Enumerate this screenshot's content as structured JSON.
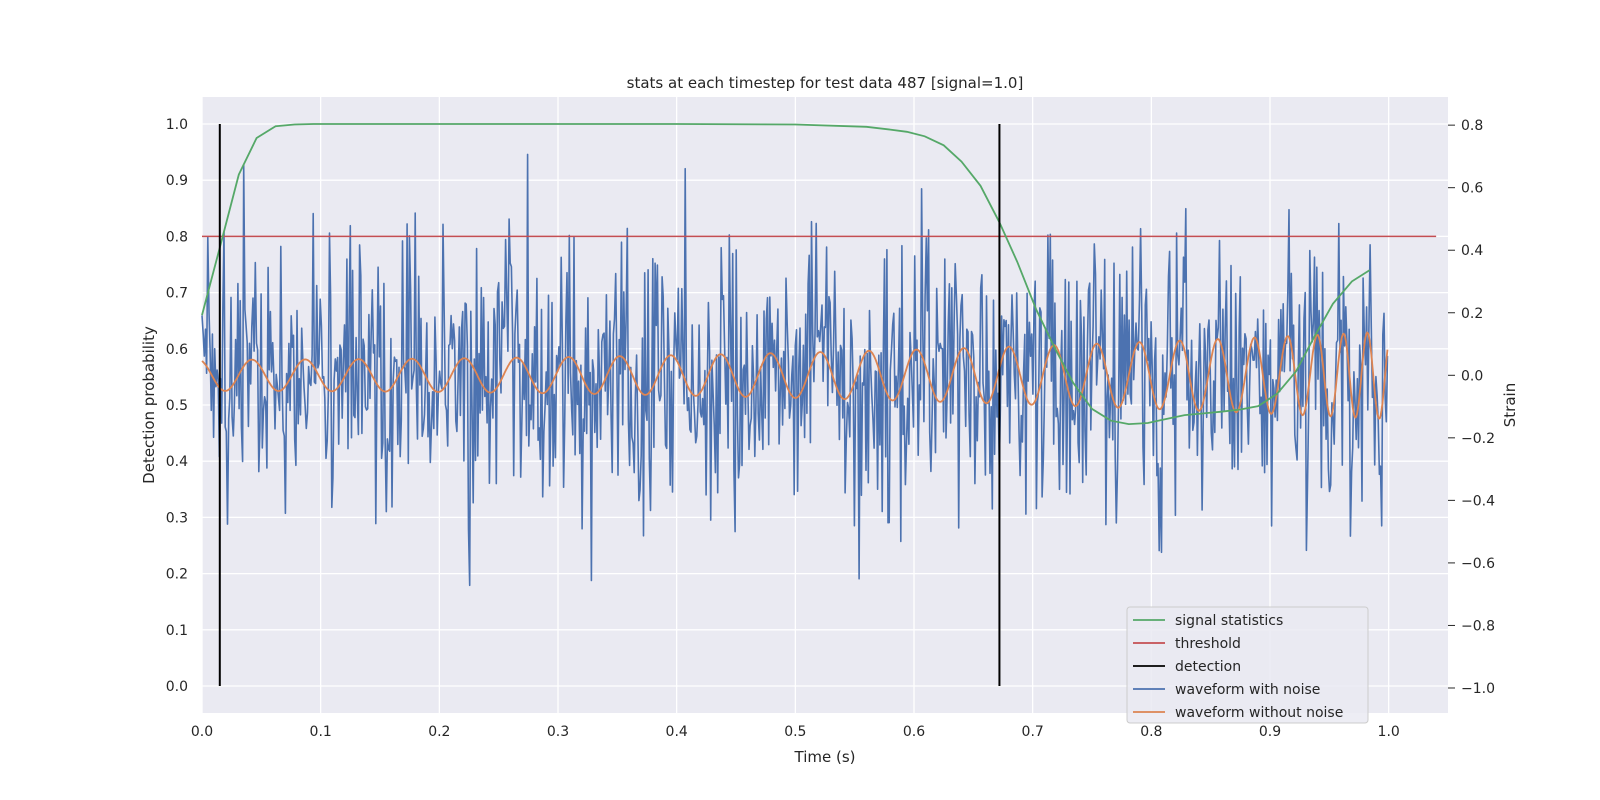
{
  "chart_data": {
    "type": "line",
    "title": "stats at each timestep for test data 487 [signal=1.0]",
    "xlabel": "Time (s)",
    "ylabel": "Detection probability",
    "y2label": "Strain",
    "xlim": [
      0.0,
      1.05
    ],
    "ylim": [
      -0.048,
      1.048
    ],
    "y2lim": [
      -1.08,
      0.89
    ],
    "xticks": [
      "0.0",
      "0.1",
      "0.2",
      "0.3",
      "0.4",
      "0.5",
      "0.6",
      "0.7",
      "0.8",
      "0.9",
      "1.0"
    ],
    "yticks": [
      "0.0",
      "0.1",
      "0.2",
      "0.3",
      "0.4",
      "0.5",
      "0.6",
      "0.7",
      "0.8",
      "0.9",
      "1.0"
    ],
    "y2ticks": [
      "−1.0",
      "−0.8",
      "−0.6",
      "−0.4",
      "−0.2",
      "0.0",
      "0.2",
      "0.4",
      "0.6",
      "0.8"
    ],
    "grid": true,
    "legend_position": "lower-right",
    "series": [
      {
        "name": "signal statistics",
        "axis": "left",
        "color": "#55a868",
        "x": [
          0.0,
          0.015,
          0.031,
          0.046,
          0.062,
          0.078,
          0.094,
          0.2,
          0.3,
          0.4,
          0.5,
          0.56,
          0.58,
          0.594,
          0.609,
          0.625,
          0.64,
          0.656,
          0.672,
          0.687,
          0.703,
          0.719,
          0.734,
          0.75,
          0.766,
          0.781,
          0.797,
          0.812,
          0.828,
          0.844,
          0.859,
          0.875,
          0.89,
          0.906,
          0.922,
          0.937,
          0.953,
          0.969,
          0.984
        ],
        "y": [
          0.66,
          0.78,
          0.91,
          0.975,
          0.996,
          0.999,
          1.0,
          1.0,
          1.0,
          1.0,
          0.999,
          0.995,
          0.99,
          0.986,
          0.978,
          0.962,
          0.933,
          0.89,
          0.825,
          0.755,
          0.67,
          0.6,
          0.54,
          0.493,
          0.472,
          0.466,
          0.468,
          0.475,
          0.482,
          0.485,
          0.488,
          0.492,
          0.498,
          0.52,
          0.56,
          0.62,
          0.68,
          0.72,
          0.74
        ]
      },
      {
        "name": "threshold",
        "axis": "left",
        "color": "#c44e52",
        "x": [
          0.0,
          1.04
        ],
        "y": [
          0.8,
          0.8
        ]
      },
      {
        "name": "detection",
        "axis": "left",
        "color": "#000000",
        "type": "vlines",
        "x": [
          0.015,
          0.672
        ],
        "ymin": 0.0,
        "ymax": 1.0
      },
      {
        "name": "waveform with noise",
        "axis": "right",
        "color": "#4c72b0",
        "x_start": 0.0,
        "x_end": 0.999,
        "std": 0.21,
        "range": [
          -0.77,
          0.8
        ]
      },
      {
        "name": "waveform without noise",
        "axis": "right",
        "color": "#dd8452",
        "x_start": 0.0,
        "x_end": 0.999,
        "peaks_x": [
          0.042,
          0.087,
          0.132,
          0.177,
          0.221,
          0.265,
          0.309,
          0.352,
          0.395,
          0.437,
          0.479,
          0.521,
          0.562,
          0.602,
          0.642,
          0.68,
          0.718,
          0.754,
          0.79,
          0.824,
          0.856,
          0.887,
          0.915,
          0.94,
          0.962,
          0.982
        ],
        "peak_amplitude_start": 0.05,
        "peak_amplitude_end": 0.14
      }
    ]
  }
}
